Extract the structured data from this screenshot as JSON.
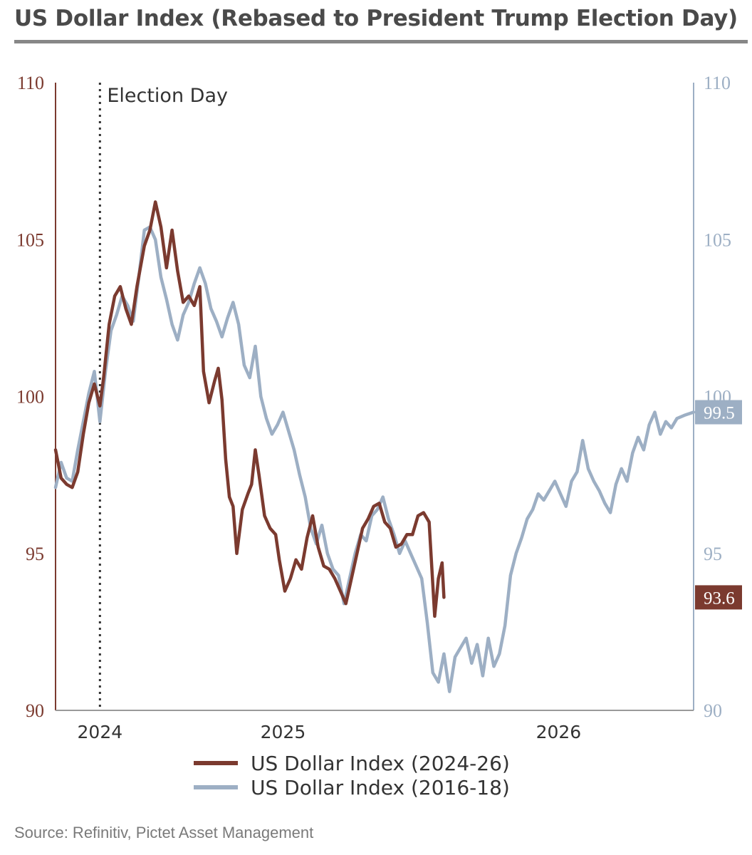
{
  "title": "US Dollar Index (Rebased to President Trump Election Day)",
  "source": "Source: Refinitiv, Pictet Asset Management",
  "chart_data": {
    "type": "line",
    "title": "US Dollar Index (Rebased to President Trump Election Day)",
    "y_left": {
      "ylim": [
        90,
        110
      ],
      "ticks": [
        "90",
        "95",
        "100",
        "105",
        "110"
      ],
      "color": "#7b3a2f"
    },
    "y_right": {
      "ylim": [
        90,
        110
      ],
      "ticks": [
        "90",
        "95",
        "100",
        "105",
        "110"
      ],
      "color": "#9dafc4"
    },
    "x_ticks": [
      "2024",
      "2025",
      "2026"
    ],
    "x_tick_months": [
      2.4,
      12.3,
      27.2
    ],
    "x_range_months": [
      0,
      34.5
    ],
    "annotation": {
      "label": "Election Day",
      "month": 2.4
    },
    "end_labels": {
      "series_2024_26": "93.6",
      "series_2016_18": "99.5"
    },
    "grid": false,
    "legend_position": "bottom",
    "series": [
      {
        "name": "US Dollar Index (2024-26)",
        "color": "#7b3a2f",
        "points": [
          [
            0,
            98.3
          ],
          [
            0.3,
            97.4
          ],
          [
            0.6,
            97.2
          ],
          [
            0.9,
            97.1
          ],
          [
            1.2,
            97.6
          ],
          [
            1.5,
            98.8
          ],
          [
            1.8,
            99.8
          ],
          [
            2.1,
            100.4
          ],
          [
            2.4,
            99.7
          ],
          [
            2.6,
            100.6
          ],
          [
            2.9,
            102.3
          ],
          [
            3.2,
            103.2
          ],
          [
            3.5,
            103.5
          ],
          [
            3.8,
            102.8
          ],
          [
            4.1,
            102.3
          ],
          [
            4.4,
            103.5
          ],
          [
            4.8,
            104.8
          ],
          [
            5.1,
            105.3
          ],
          [
            5.4,
            106.2
          ],
          [
            5.7,
            105.4
          ],
          [
            6.0,
            104.1
          ],
          [
            6.3,
            105.3
          ],
          [
            6.6,
            104.0
          ],
          [
            6.9,
            103.0
          ],
          [
            7.2,
            103.2
          ],
          [
            7.5,
            102.9
          ],
          [
            7.8,
            103.5
          ],
          [
            8.0,
            100.8
          ],
          [
            8.3,
            99.8
          ],
          [
            8.6,
            100.5
          ],
          [
            8.8,
            100.9
          ],
          [
            9.0,
            99.9
          ],
          [
            9.2,
            98.0
          ],
          [
            9.4,
            96.8
          ],
          [
            9.6,
            96.5
          ],
          [
            9.8,
            95.0
          ],
          [
            10.1,
            96.4
          ],
          [
            10.4,
            96.9
          ],
          [
            10.6,
            97.2
          ],
          [
            10.8,
            98.3
          ],
          [
            11.0,
            97.5
          ],
          [
            11.3,
            96.2
          ],
          [
            11.6,
            95.8
          ],
          [
            11.9,
            95.6
          ],
          [
            12.1,
            94.8
          ],
          [
            12.4,
            93.8
          ],
          [
            12.7,
            94.2
          ],
          [
            13.0,
            94.8
          ],
          [
            13.3,
            94.5
          ],
          [
            13.6,
            95.5
          ],
          [
            13.9,
            96.2
          ],
          [
            14.2,
            95.2
          ],
          [
            14.5,
            94.6
          ],
          [
            14.8,
            94.5
          ],
          [
            15.1,
            94.2
          ],
          [
            15.4,
            93.8
          ],
          [
            15.7,
            93.4
          ],
          [
            16.0,
            94.2
          ],
          [
            16.3,
            95.0
          ],
          [
            16.6,
            95.8
          ],
          [
            16.9,
            96.1
          ],
          [
            17.2,
            96.5
          ],
          [
            17.5,
            96.6
          ],
          [
            17.8,
            96.0
          ],
          [
            18.1,
            95.8
          ],
          [
            18.4,
            95.2
          ],
          [
            18.7,
            95.3
          ],
          [
            19.0,
            95.6
          ],
          [
            19.3,
            95.6
          ],
          [
            19.6,
            96.2
          ],
          [
            19.9,
            96.3
          ],
          [
            20.2,
            96.0
          ],
          [
            20.5,
            93.0
          ],
          [
            20.7,
            94.2
          ],
          [
            20.9,
            94.7
          ],
          [
            21.0,
            93.6
          ]
        ]
      },
      {
        "name": "US Dollar Index (2016-18)",
        "color": "#9dafc4",
        "points": [
          [
            0,
            97.1
          ],
          [
            0.3,
            97.9
          ],
          [
            0.6,
            97.4
          ],
          [
            0.9,
            97.3
          ],
          [
            1.2,
            98.3
          ],
          [
            1.5,
            99.2
          ],
          [
            1.8,
            100.1
          ],
          [
            2.1,
            100.8
          ],
          [
            2.4,
            99.2
          ],
          [
            2.7,
            100.8
          ],
          [
            3.0,
            102.1
          ],
          [
            3.3,
            102.6
          ],
          [
            3.6,
            103.2
          ],
          [
            3.9,
            102.9
          ],
          [
            4.2,
            102.4
          ],
          [
            4.5,
            103.8
          ],
          [
            4.8,
            105.3
          ],
          [
            5.1,
            105.4
          ],
          [
            5.4,
            105.0
          ],
          [
            5.7,
            103.8
          ],
          [
            6.0,
            103.1
          ],
          [
            6.3,
            102.3
          ],
          [
            6.6,
            101.8
          ],
          [
            6.9,
            102.6
          ],
          [
            7.2,
            103.0
          ],
          [
            7.5,
            103.6
          ],
          [
            7.8,
            104.1
          ],
          [
            8.1,
            103.6
          ],
          [
            8.4,
            102.8
          ],
          [
            8.7,
            102.4
          ],
          [
            9.0,
            101.9
          ],
          [
            9.3,
            102.5
          ],
          [
            9.6,
            103.0
          ],
          [
            9.9,
            102.3
          ],
          [
            10.2,
            101.0
          ],
          [
            10.5,
            100.6
          ],
          [
            10.8,
            101.6
          ],
          [
            11.1,
            100.0
          ],
          [
            11.4,
            99.3
          ],
          [
            11.7,
            98.8
          ],
          [
            12.0,
            99.1
          ],
          [
            12.3,
            99.5
          ],
          [
            12.6,
            98.9
          ],
          [
            12.9,
            98.3
          ],
          [
            13.2,
            97.5
          ],
          [
            13.5,
            96.8
          ],
          [
            13.8,
            95.8
          ],
          [
            14.1,
            95.3
          ],
          [
            14.4,
            95.9
          ],
          [
            14.7,
            95.0
          ],
          [
            15.0,
            94.5
          ],
          [
            15.3,
            94.3
          ],
          [
            15.6,
            93.4
          ],
          [
            15.9,
            94.2
          ],
          [
            16.2,
            95.0
          ],
          [
            16.5,
            95.6
          ],
          [
            16.8,
            95.4
          ],
          [
            17.1,
            96.2
          ],
          [
            17.4,
            96.4
          ],
          [
            17.7,
            96.8
          ],
          [
            18.0,
            96.1
          ],
          [
            18.3,
            95.6
          ],
          [
            18.6,
            95.0
          ],
          [
            18.9,
            95.4
          ],
          [
            19.2,
            95.0
          ],
          [
            19.5,
            94.6
          ],
          [
            19.8,
            94.2
          ],
          [
            20.1,
            92.8
          ],
          [
            20.4,
            91.2
          ],
          [
            20.7,
            90.9
          ],
          [
            21.0,
            91.8
          ],
          [
            21.3,
            90.6
          ],
          [
            21.6,
            91.7
          ],
          [
            21.9,
            92.0
          ],
          [
            22.2,
            92.3
          ],
          [
            22.5,
            91.5
          ],
          [
            22.8,
            92.1
          ],
          [
            23.1,
            91.1
          ],
          [
            23.4,
            92.3
          ],
          [
            23.7,
            91.4
          ],
          [
            24.0,
            91.8
          ],
          [
            24.3,
            92.7
          ],
          [
            24.6,
            94.3
          ],
          [
            24.9,
            95.0
          ],
          [
            25.2,
            95.5
          ],
          [
            25.5,
            96.1
          ],
          [
            25.8,
            96.4
          ],
          [
            26.1,
            96.9
          ],
          [
            26.4,
            96.7
          ],
          [
            26.7,
            97.0
          ],
          [
            27.0,
            97.3
          ],
          [
            27.3,
            96.9
          ],
          [
            27.6,
            96.5
          ],
          [
            27.9,
            97.3
          ],
          [
            28.2,
            97.6
          ],
          [
            28.5,
            98.6
          ],
          [
            28.8,
            97.7
          ],
          [
            29.1,
            97.3
          ],
          [
            29.4,
            97.0
          ],
          [
            29.7,
            96.6
          ],
          [
            30.0,
            96.3
          ],
          [
            30.3,
            97.2
          ],
          [
            30.6,
            97.7
          ],
          [
            30.9,
            97.3
          ],
          [
            31.2,
            98.2
          ],
          [
            31.5,
            98.7
          ],
          [
            31.8,
            98.3
          ],
          [
            32.1,
            99.1
          ],
          [
            32.4,
            99.5
          ],
          [
            32.7,
            98.8
          ],
          [
            33.0,
            99.2
          ],
          [
            33.3,
            99.0
          ],
          [
            33.6,
            99.3
          ],
          [
            34.0,
            99.4
          ],
          [
            34.5,
            99.5
          ]
        ]
      }
    ]
  }
}
